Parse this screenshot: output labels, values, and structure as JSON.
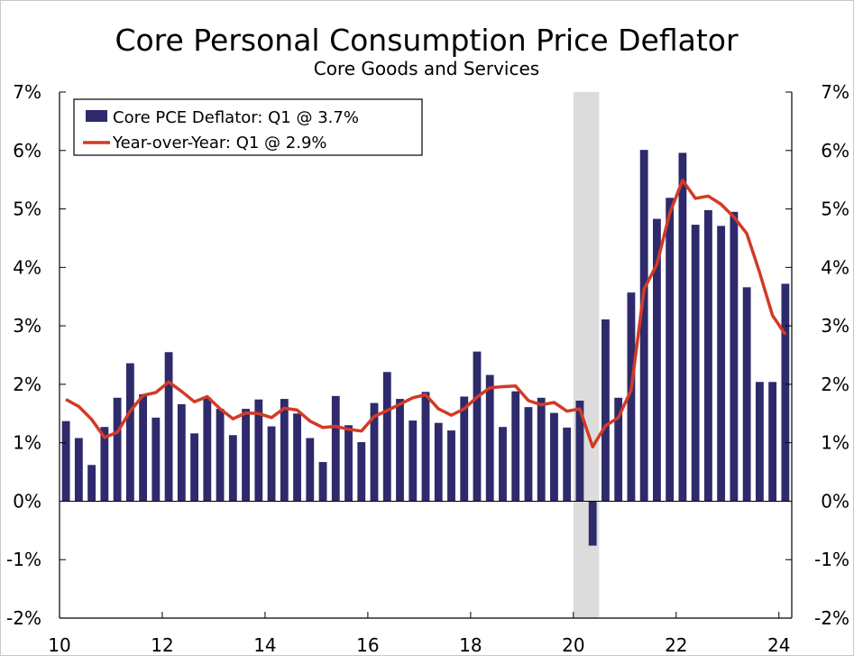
{
  "chart_data": {
    "type": "bar+line",
    "title": "Core Personal Consumption Price Deflator",
    "subtitle": "Core Goods and Services",
    "xlabel": "",
    "ylabel": "",
    "ylim": [
      -2,
      7
    ],
    "y_ticks": [
      "-2%",
      "-1%",
      "0%",
      "1%",
      "2%",
      "3%",
      "4%",
      "5%",
      "6%",
      "7%"
    ],
    "y_tick_values": [
      -2,
      -1,
      0,
      1,
      2,
      3,
      4,
      5,
      6,
      7
    ],
    "x_tick_labels": [
      "10",
      "12",
      "14",
      "16",
      "18",
      "20",
      "22",
      "24"
    ],
    "x_tick_values": [
      2010,
      2012,
      2014,
      2016,
      2018,
      2020,
      2022,
      2024
    ],
    "x_range": [
      2010,
      2024.25
    ],
    "recession_shading": [
      [
        2020.0,
        2020.5
      ]
    ],
    "quarters_start": 2010.0,
    "quarters_step": 0.25,
    "legend_position": "top-left",
    "series": [
      {
        "name": "Core PCE Deflator: Q1 @ 3.7%",
        "type": "bar",
        "color": "#2e2a6b",
        "values": [
          1.37,
          1.08,
          0.62,
          1.27,
          1.77,
          2.36,
          1.83,
          1.43,
          2.55,
          1.66,
          1.16,
          1.77,
          1.58,
          1.13,
          1.58,
          1.74,
          1.28,
          1.75,
          1.5,
          1.08,
          0.67,
          1.8,
          1.3,
          1.01,
          1.68,
          2.21,
          1.75,
          1.38,
          1.87,
          1.34,
          1.21,
          1.79,
          2.56,
          2.16,
          1.27,
          1.88,
          1.61,
          1.77,
          1.51,
          1.26,
          1.72,
          -0.76,
          3.11,
          1.77,
          3.57,
          6.01,
          4.83,
          5.19,
          5.96,
          4.73,
          4.98,
          4.71,
          4.95,
          3.66,
          2.04,
          2.04,
          3.72
        ]
      },
      {
        "name": "Year-over-Year: Q1 @ 2.9%",
        "type": "line",
        "color": "#d33a26",
        "values": [
          1.74,
          1.62,
          1.4,
          1.09,
          1.18,
          1.54,
          1.81,
          1.86,
          2.04,
          1.88,
          1.7,
          1.79,
          1.58,
          1.41,
          1.51,
          1.5,
          1.43,
          1.59,
          1.56,
          1.37,
          1.26,
          1.28,
          1.23,
          1.2,
          1.45,
          1.55,
          1.66,
          1.77,
          1.82,
          1.58,
          1.47,
          1.58,
          1.78,
          1.94,
          1.96,
          1.97,
          1.72,
          1.65,
          1.69,
          1.54,
          1.58,
          0.93,
          1.29,
          1.43,
          1.9,
          3.63,
          4.05,
          4.93,
          5.49,
          5.18,
          5.22,
          5.08,
          4.86,
          4.58,
          3.91,
          3.18,
          2.85
        ]
      }
    ]
  }
}
